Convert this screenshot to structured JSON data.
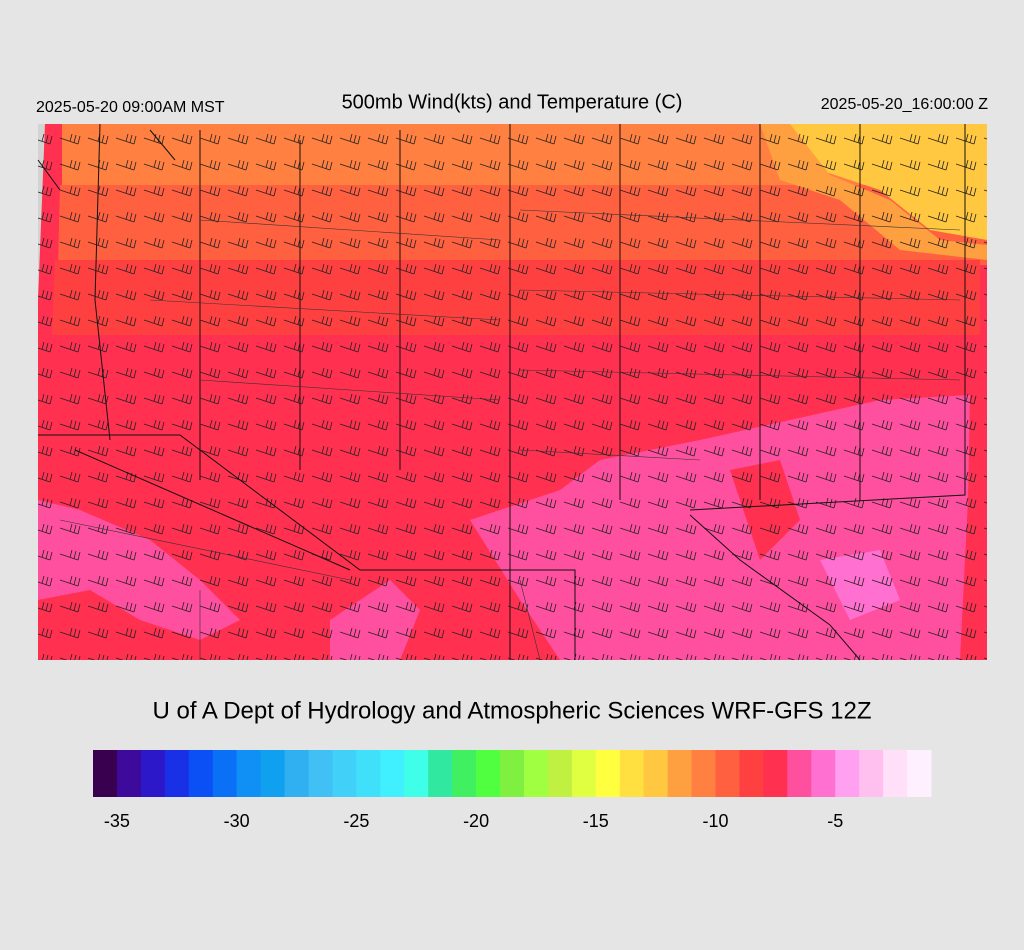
{
  "header": {
    "title": "500mb Wind(kts) and Temperature (C)",
    "local_time": "2025-05-20 09:00AM MST",
    "valid_time": "2025-05-20_16:00:00 Z"
  },
  "credit": "U of A Dept of Hydrology and Atmospheric Sciences WRF-GFS 12Z",
  "colorbar": {
    "range": [
      -36,
      -1
    ],
    "ticks": [
      -35,
      -30,
      -25,
      -20,
      -15,
      -10,
      -5
    ],
    "colors": [
      "#3a0050",
      "#3d0a9c",
      "#2c18c8",
      "#1a30e6",
      "#0a50f5",
      "#0a70f5",
      "#1090f5",
      "#10a0f0",
      "#30b0f0",
      "#40c0f5",
      "#40d0f8",
      "#40e0fa",
      "#40f0ff",
      "#40ffe8",
      "#30e8a0",
      "#40f060",
      "#50ff40",
      "#80f040",
      "#a0ff40",
      "#c0f040",
      "#e0ff40",
      "#ffff40",
      "#ffe040",
      "#ffc840",
      "#ffa040",
      "#ff8040",
      "#ff6040",
      "#ff4040",
      "#ff3050",
      "#ff50a0",
      "#ff70d0",
      "#ffa0f0",
      "#ffc0f0",
      "#ffe0f8",
      "#fff0ff"
    ]
  }
}
